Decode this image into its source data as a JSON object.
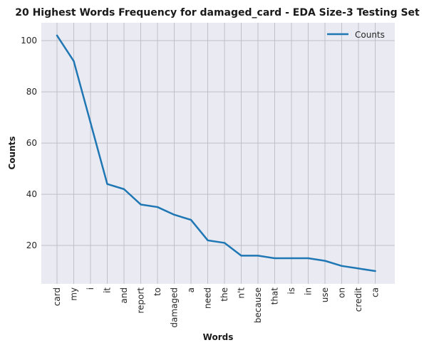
{
  "chart_data": {
    "type": "line",
    "title": "20 Highest Words Frequency for damaged_card - EDA Size-3 Testing Set",
    "xlabel": "Words",
    "ylabel": "Counts",
    "categories": [
      "card",
      "my",
      "i",
      "it",
      "and",
      "report",
      "to",
      "damaged",
      "a",
      "need",
      "the",
      "n't",
      "because",
      "that",
      "is",
      "in",
      "use",
      "on",
      "credit",
      "ca"
    ],
    "series": [
      {
        "name": "Counts",
        "values": [
          102,
          92,
          68,
          44,
          42,
          36,
          35,
          32,
          30,
          22,
          21,
          16,
          16,
          15,
          15,
          15,
          14,
          12,
          11,
          10
        ]
      }
    ],
    "ylim": [
      5,
      107
    ],
    "yticks": [
      20,
      40,
      60,
      80,
      100
    ],
    "grid": true,
    "legend": "top-right",
    "colors": {
      "line": "#1f77b4",
      "background": "#eaeaf2",
      "grid": "#c0c0c8"
    }
  }
}
